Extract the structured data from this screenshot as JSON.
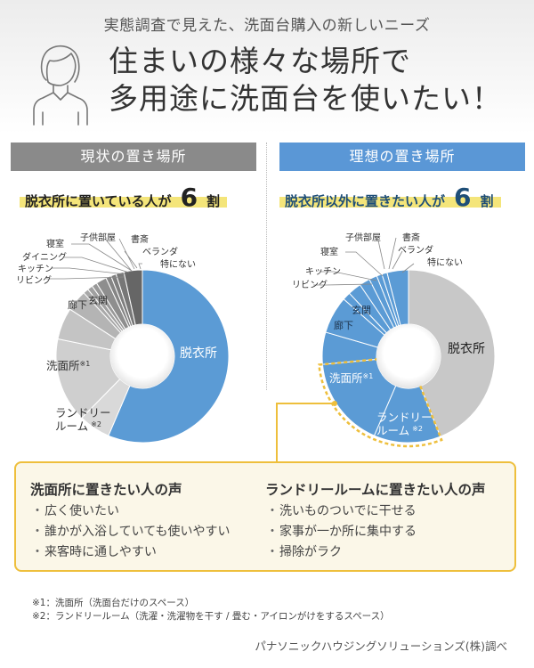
{
  "header": {
    "subtitle": "実態調査で見えた、洗面台購入の新しいニーズ",
    "headline_line1": "住まいの様々な場所で",
    "headline_line2": "多用途に洗面台を使いたい！"
  },
  "sections": {
    "current": {
      "label": "現状の置き場所",
      "stat_prefix": "脱衣所に置いている人が",
      "stat_number": "6",
      "stat_suffix": "割"
    },
    "ideal": {
      "label": "理想の置き場所",
      "stat_prefix": "脱衣所以外に置きたい人が",
      "stat_number": "6",
      "stat_suffix": "割"
    }
  },
  "colors": {
    "blue": "#5b9bd5",
    "gray_bar": "#8a8a8a",
    "blue_bar": "#5a97d6",
    "highlight_yellow": "#f4e57a",
    "accent_orange": "#eebf3c",
    "box_bg": "#fbf7e8"
  },
  "chart_data": [
    {
      "type": "pie",
      "title": "現状の置き場所",
      "donut": true,
      "categories": [
        "脱衣所",
        "ランドリールーム※2",
        "洗面所※1",
        "廊下",
        "玄関",
        "リビング",
        "キッチン",
        "ダイニング",
        "寝室",
        "子供部屋",
        "書斎",
        "ベランダ",
        "特にない"
      ],
      "values": [
        57,
        6,
        16,
        6,
        4,
        1,
        1,
        1,
        2,
        1,
        1,
        1.5,
        3.5
      ],
      "colors": [
        "#5b9bd5",
        "#d9d9d9",
        "#cfcfcf",
        "#c4c4c4",
        "#b4b4b4",
        "#a8a8a8",
        "#a0a0a0",
        "#989898",
        "#8e8e8e",
        "#858585",
        "#7e7e7e",
        "#777777",
        "#666666"
      ],
      "annotation": "脱衣所に置いている人が6割"
    },
    {
      "type": "pie",
      "title": "理想の置き場所",
      "donut": true,
      "categories": [
        "脱衣所",
        "ランドリールーム※2",
        "洗面所※1",
        "廊下",
        "玄関",
        "リビング",
        "キッチン",
        "寝室",
        "子供部屋",
        "書斎",
        "ベランダ",
        "特にない"
      ],
      "values": [
        44,
        12.5,
        17,
        6,
        7,
        1.5,
        2.5,
        2,
        1.5,
        1,
        1,
        4
      ],
      "colors": [
        "#c8c8c8",
        "#5b9bd5",
        "#5b9bd5",
        "#5b9bd5",
        "#5b9bd5",
        "#5b9bd5",
        "#5b9bd5",
        "#5b9bd5",
        "#5b9bd5",
        "#5b9bd5",
        "#5b9bd5",
        "#5b9bd5"
      ],
      "annotation": "脱衣所以外に置きたい人が6割",
      "highlighted": [
        "洗面所※1",
        "ランドリールーム※2"
      ]
    }
  ],
  "chart_labels": {
    "left": {
      "datsui": "脱衣所",
      "senmen": "洗面所",
      "senmen_note": "※1",
      "laundry1": "ランドリー",
      "laundry2": "ルーム",
      "laundry_note": "※2",
      "rouka": "廊下",
      "genkan": "玄関",
      "living": "リビング",
      "kitchen": "キッチン",
      "dining": "ダイニング",
      "shinshitsu": "寝室",
      "kodomo": "子供部屋",
      "shosai": "書斎",
      "veranda": "ベランダ",
      "nashi": "特にない"
    },
    "right": {
      "datsui": "脱衣所",
      "senmen": "洗面所",
      "senmen_note": "※1",
      "laundry1": "ランドリー",
      "laundry2": "ルーム",
      "laundry_note": "※2",
      "rouka": "廊下",
      "genkan": "玄関",
      "living": "リビング",
      "kitchen": "キッチン",
      "shinshitsu": "寝室",
      "kodomo": "子供部屋",
      "shosai": "書斎",
      "veranda": "ベランダ",
      "nashi": "特にない"
    }
  },
  "voices": {
    "left": {
      "title": "洗面所に置きたい人の声",
      "items": [
        "広く使いたい",
        "誰かが入浴していても使いやすい",
        "来客時に通しやすい"
      ]
    },
    "right": {
      "title": "ランドリールームに置きたい人の声",
      "items": [
        "洗いものついでに干せる",
        "家事が一か所に集中する",
        "掃除がラク"
      ]
    },
    "bullet": "・"
  },
  "notes": {
    "note1": "※1：洗面所（洗面台だけのスペース）",
    "note2": "※2：ランドリールーム（洗濯・洗濯物を干す / 畳む・アイロンがけをするスペース）"
  },
  "source": "パナソニックハウジングソリューションズ(株)調べ"
}
